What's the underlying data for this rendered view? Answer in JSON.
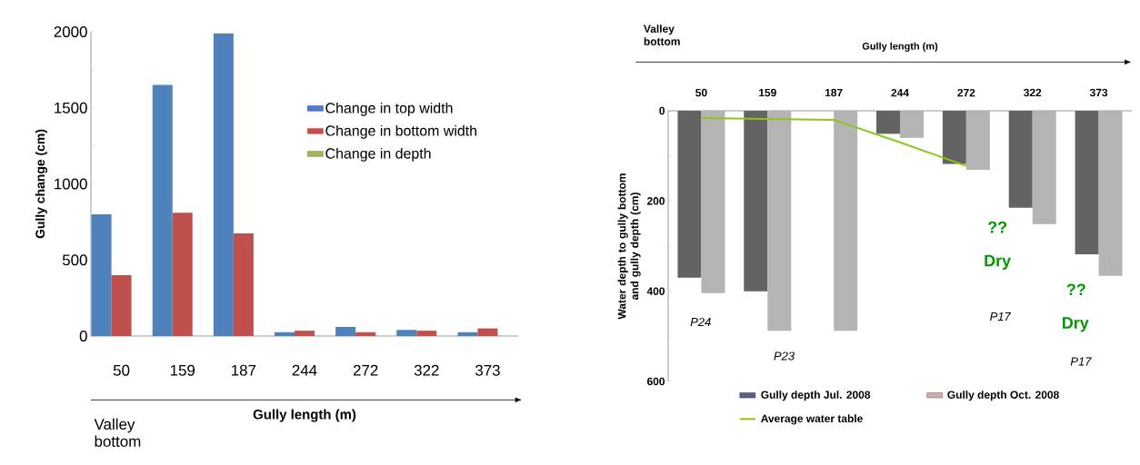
{
  "chart_data": [
    {
      "type": "bar",
      "ylabel": "Gully change (cm)",
      "xlabel": "Gully length (m)",
      "categories": [
        "50",
        "159",
        "187",
        "244",
        "272",
        "322",
        "373"
      ],
      "series": [
        {
          "name": "Change in top width",
          "color": "#4f81bd",
          "values": [
            800,
            1650,
            1990,
            25,
            60,
            40,
            25
          ]
        },
        {
          "name": "Change in bottom width",
          "color": "#c0504d",
          "values": [
            400,
            810,
            675,
            35,
            25,
            35,
            50
          ]
        },
        {
          "name": "Change in depth",
          "color": "#9bbb59",
          "values": [
            0,
            0,
            0,
            0,
            0,
            0,
            0
          ]
        }
      ],
      "ylim": [
        0,
        2000
      ],
      "yticks": [
        0,
        {
          "value": 250,
          "label": null
        },
        500,
        {
          "value": 750,
          "label": null
        },
        1000,
        {
          "value": 1250,
          "label": null
        },
        1500,
        {
          "value": 1750,
          "label": null
        },
        2000
      ],
      "legend": "right",
      "grid": false,
      "annotations": [
        "Valley bottom"
      ]
    },
    {
      "type": "bar",
      "ylabel": "Water depth to gully bottom and gully depth (cm)",
      "xlabel": "Gully length (m)",
      "categories": [
        "50",
        "159",
        "187",
        "244",
        "272",
        "322",
        "373"
      ],
      "series": [
        {
          "name": "Gully depth Jul. 2008",
          "color": "#636363",
          "values": [
            370,
            400,
            null,
            51,
            118,
            215,
            318
          ]
        },
        {
          "name": "Gully depth Oct. 2008",
          "color": "#b4b4b4",
          "values": [
            404,
            488,
            488,
            60,
            131,
            251,
            366
          ]
        },
        {
          "name": "Average water table",
          "type": "line",
          "color": "#8cc812",
          "values": [
            16,
            18,
            20,
            70,
            122,
            null,
            null
          ]
        }
      ],
      "ylim": [
        600,
        0
      ],
      "yticks": [
        0,
        {
          "value": 100,
          "label": null
        },
        200,
        {
          "value": 300,
          "label": null
        },
        400,
        {
          "value": 500,
          "label": null
        },
        600
      ],
      "legend": "bottom",
      "grid": false,
      "annotations": [
        "Valley bottom",
        "P24",
        "P23",
        "??",
        "Dry",
        "P17",
        "??",
        "Dry",
        "P17"
      ]
    }
  ]
}
